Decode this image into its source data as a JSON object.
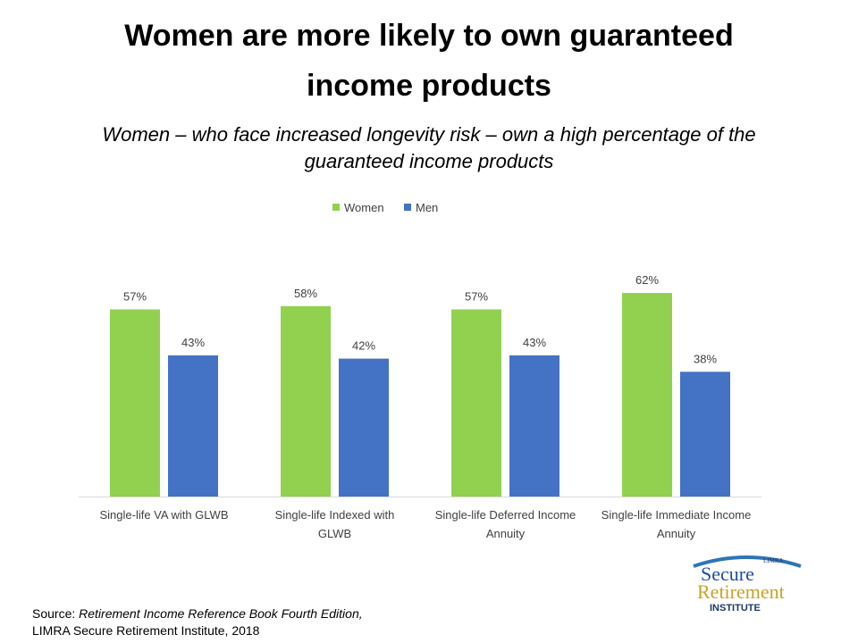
{
  "title": {
    "line1": "Women are more likely to own guaranteed",
    "line2": "income products"
  },
  "subtitle": {
    "line1": "Women – who face increased longevity risk – own a high percentage of the",
    "line2": "guaranteed income products"
  },
  "colors": {
    "women": "#92D050",
    "men": "#4472C4",
    "axis": "#D9D9D9",
    "label_text": "#404040"
  },
  "chart_data": {
    "type": "bar",
    "categories": [
      [
        "Single-life VA with GLWB"
      ],
      [
        "Single-life Indexed with",
        "GLWB"
      ],
      [
        "Single-life Deferred Income",
        "Annuity"
      ],
      [
        "Single-life Immediate Income",
        "Annuity"
      ]
    ],
    "series": [
      {
        "name": "Women",
        "values": [
          57,
          58,
          57,
          62
        ],
        "labels": [
          "57%",
          "58%",
          "57%",
          "62%"
        ]
      },
      {
        "name": "Men",
        "values": [
          43,
          42,
          43,
          38
        ],
        "labels": [
          "43%",
          "42%",
          "43%",
          "38%"
        ]
      }
    ],
    "ylim": [
      0,
      68
    ],
    "legend": "top-center",
    "grid": false
  },
  "source": {
    "prefix": "Source: ",
    "title": "Retirement Income Reference Book Fourth Edition,",
    "line2": "LIMRA Secure Retirement Institute,  2018"
  },
  "logo": {
    "top": "LIMRA",
    "word1": "Secure",
    "word2": "Retirement",
    "word3": "INSTITUTE"
  }
}
